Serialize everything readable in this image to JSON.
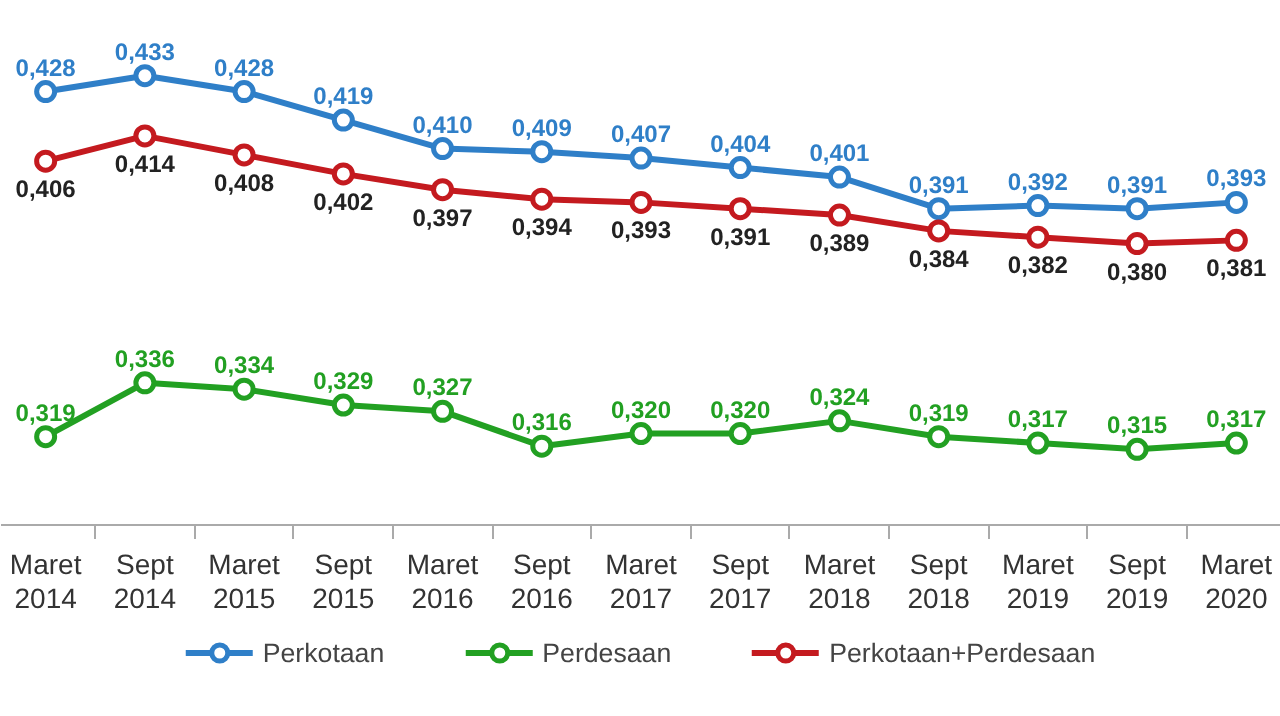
{
  "chart_data": {
    "type": "line",
    "categories": [
      "Maret 2014",
      "Sept 2014",
      "Maret 2015",
      "Sept 2015",
      "Maret 2016",
      "Sept 2016",
      "Maret 2017",
      "Sept 2017",
      "Maret 2018",
      "Sept 2018",
      "Maret 2019",
      "Sept 2019",
      "Maret 2020"
    ],
    "series": [
      {
        "name": "Perkotaan",
        "color": "#2f7fc8",
        "values": [
          0.428,
          0.433,
          0.428,
          0.419,
          0.41,
          0.409,
          0.407,
          0.404,
          0.401,
          0.391,
          0.392,
          0.391,
          0.393
        ],
        "value_labels": [
          "0,428",
          "0,433",
          "0,428",
          "0,419",
          "0,410",
          "0,409",
          "0,407",
          "0,404",
          "0,401",
          "0,391",
          "0,392",
          "0,391",
          "0,393"
        ]
      },
      {
        "name": "Perdesaan",
        "color": "#22a022",
        "values": [
          0.319,
          0.336,
          0.334,
          0.329,
          0.327,
          0.316,
          0.32,
          0.32,
          0.324,
          0.319,
          0.317,
          0.315,
          0.317
        ],
        "value_labels": [
          "0,319",
          "0,336",
          "0,334",
          "0,329",
          "0,327",
          "0,316",
          "0,320",
          "0,320",
          "0,324",
          "0,319",
          "0,317",
          "0,315",
          "0,317"
        ]
      },
      {
        "name": "Perkotaan+Perdesaan",
        "color": "#c41a1f",
        "values": [
          0.406,
          0.414,
          0.408,
          0.402,
          0.397,
          0.394,
          0.393,
          0.391,
          0.389,
          0.384,
          0.382,
          0.38,
          0.381
        ],
        "value_labels": [
          "0,406",
          "0,414",
          "0,408",
          "0,402",
          "0,397",
          "0,394",
          "0,393",
          "0,391",
          "0,389",
          "0,384",
          "0,382",
          "0,380",
          "0,381"
        ]
      }
    ],
    "data_labels": true,
    "marker": "circle",
    "line_style": "solid",
    "grid": false,
    "legend": "bottom"
  }
}
